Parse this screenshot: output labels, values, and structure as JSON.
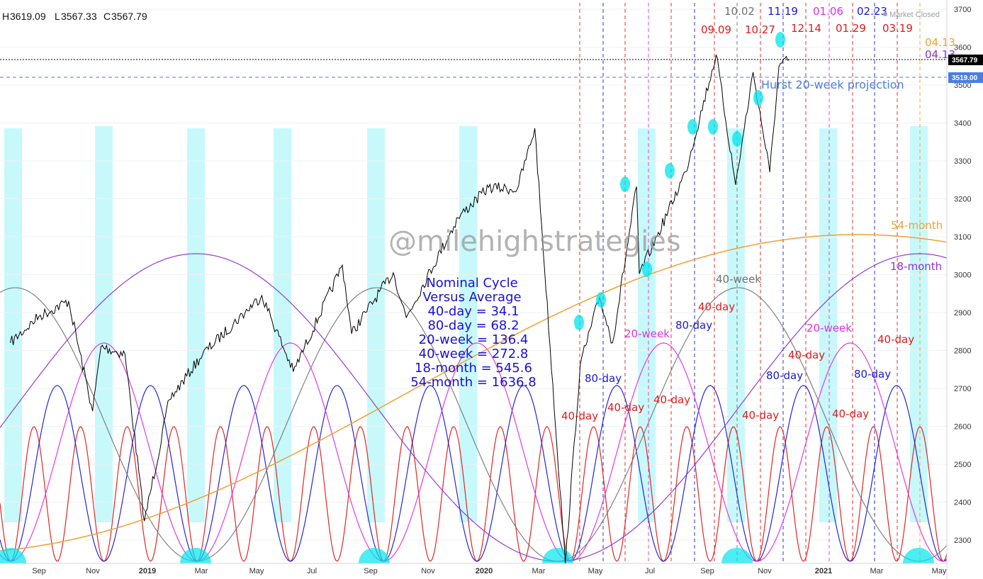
{
  "header": {
    "ohlc": [
      {
        "label": "H",
        "value": "3619.09"
      },
      {
        "label": "L",
        "value": "3567.33"
      },
      {
        "label": "C",
        "value": "3567.79"
      }
    ],
    "market_status": "Market Closed"
  },
  "watermark": "@milehighstrategies",
  "nominal_box": {
    "lines": [
      "Nominal Cycle",
      "Versus Average",
      "40-day = 34.1",
      "80-day = 68.2",
      "20-week = 136.4",
      "40-week = 272.8",
      "18-month = 545.6",
      "54-month = 1636.8"
    ]
  },
  "projection_label": "Hurst 20-week projection",
  "price_tags": {
    "last": "3567.79",
    "projection": "3519.00"
  },
  "colors": {
    "c40day": "#e01b1b",
    "c80day": "#1b1bd0",
    "c20week": "#e030e0",
    "c40week": "#707070",
    "c18month": "#9030d0",
    "c54month": "#f0a030",
    "highlight": "#00e5ee",
    "price": "#000000",
    "tag_last": "#000000",
    "tag_proj": "#4a7fe0"
  },
  "chart_data": {
    "type": "line",
    "y_ticks": [
      2300,
      2400,
      2500,
      2600,
      2700,
      2800,
      2900,
      3000,
      3100,
      3200,
      3300,
      3400,
      3500,
      3600,
      3700
    ],
    "ylim": [
      2237,
      3730
    ],
    "x_ticks": [
      "Sep",
      "Nov",
      "2019",
      "Mar",
      "May",
      "Jul",
      "Sep",
      "Nov",
      "2020",
      "Mar",
      "May",
      "Jul",
      "Sep",
      "Nov",
      "2021",
      "Mar",
      "May"
    ],
    "last_price": 3567.79,
    "projection_level": 3519.0,
    "series_price": {
      "x": [
        "2018-08-01",
        "2018-09-01",
        "2018-10-03",
        "2018-10-29",
        "2018-11-07",
        "2018-12-03",
        "2018-12-24",
        "2019-01-20",
        "2019-02-25",
        "2019-04-30",
        "2019-06-03",
        "2019-07-26",
        "2019-08-05",
        "2019-08-20",
        "2019-09-19",
        "2019-10-03",
        "2019-11-28",
        "2019-12-31",
        "2020-01-31",
        "2020-02-19",
        "2020-03-23",
        "2020-04-08",
        "2020-04-29",
        "2020-05-13",
        "2020-06-08",
        "2020-06-11",
        "2020-06-30",
        "2020-07-31",
        "2020-09-02",
        "2020-09-23",
        "2020-10-12",
        "2020-10-30",
        "2020-11-09",
        "2020-11-20"
      ],
      "y": [
        2820,
        2890,
        2930,
        2640,
        2810,
        2790,
        2350,
        2670,
        2790,
        2945,
        2744,
        3025,
        2844,
        2900,
        3005,
        2887,
        3150,
        3230,
        3225,
        3386,
        2237,
        2760,
        2940,
        2820,
        3232,
        3002,
        3100,
        3271,
        3580,
        3237,
        3534,
        3270,
        3550,
        3567
      ]
    },
    "cycles": [
      {
        "name": "40-day",
        "nominal": 34.1
      },
      {
        "name": "80-day",
        "nominal": 68.2
      },
      {
        "name": "20-week",
        "nominal": 136.4
      },
      {
        "name": "40-week",
        "nominal": 272.8
      },
      {
        "name": "18-month",
        "nominal": 545.6
      },
      {
        "name": "54-month",
        "nominal": 1636.8
      }
    ],
    "cycle_labels": [
      {
        "text": "40-day",
        "color": "c40day"
      },
      {
        "text": "40-day",
        "color": "c40day"
      },
      {
        "text": "40-day",
        "color": "c40day"
      },
      {
        "text": "40-day",
        "color": "c40day"
      },
      {
        "text": "40-day",
        "color": "c40day"
      },
      {
        "text": "40-day",
        "color": "c40day"
      },
      {
        "text": "40-day",
        "color": "c40day"
      },
      {
        "text": "40-day",
        "color": "c40day"
      },
      {
        "text": "80-day",
        "color": "c80day"
      },
      {
        "text": "80-day",
        "color": "c80day"
      },
      {
        "text": "80-day",
        "color": "c80day"
      },
      {
        "text": "80-day",
        "color": "c80day"
      },
      {
        "text": "20-week",
        "color": "c20week"
      },
      {
        "text": "20-week",
        "color": "c20week"
      },
      {
        "text": "40-week",
        "color": "c40week"
      },
      {
        "text": "18-month",
        "color": "c18month"
      },
      {
        "text": "54-month",
        "color": "c54month"
      }
    ],
    "date_labels": [
      {
        "text": "10.02",
        "color": "#707070"
      },
      {
        "text": "11.19",
        "color": "#1b1bd0"
      },
      {
        "text": "01.06",
        "color": "#e030e0"
      },
      {
        "text": "02.23",
        "color": "#1b1bd0"
      },
      {
        "text": "09.09",
        "color": "#e01b1b"
      },
      {
        "text": "10.27",
        "color": "#e01b1b"
      },
      {
        "text": "12.14",
        "color": "#e01b1b"
      },
      {
        "text": "01.29",
        "color": "#e01b1b"
      },
      {
        "text": "03.19",
        "color": "#e01b1b"
      },
      {
        "text": "04.13",
        "color": "#f0a030"
      },
      {
        "text": "04.13",
        "color": "#9030d0"
      }
    ]
  }
}
